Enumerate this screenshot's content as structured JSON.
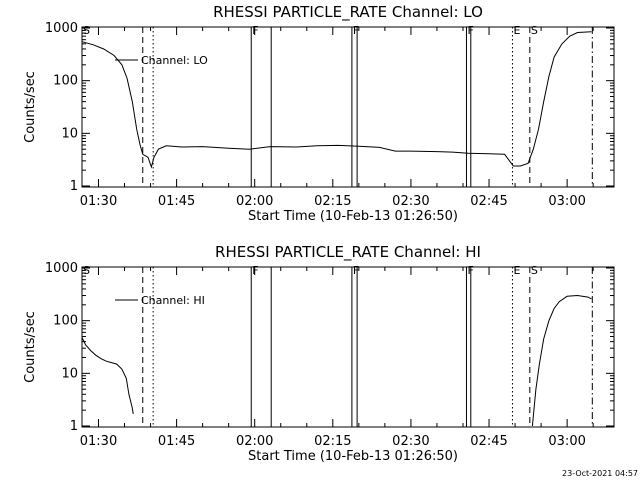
{
  "footer": {
    "timestamp": "23-Oct-2021 04:57"
  },
  "chart_data": [
    {
      "type": "line",
      "title": "RHESSI PARTICLE_RATE Channel: LO",
      "xlabel": "Start Time (10-Feb-13 01:26:50)",
      "ylabel": "Counts/sec",
      "y_scale": "log",
      "ylim": [
        1,
        1000
      ],
      "xlim": [
        "01:26:50",
        "03:09:00"
      ],
      "x_ticks": [
        "01:30",
        "01:45",
        "02:00",
        "02:15",
        "02:30",
        "02:45",
        "03:00"
      ],
      "y_ticks": [
        "1",
        "10",
        "100",
        "1000"
      ],
      "legend": {
        "position": "top-left",
        "entries": [
          "Channel: LO"
        ]
      },
      "markers": [
        {
          "label": "S",
          "time": "01:26:50",
          "style": "dashdot"
        },
        {
          "label": "",
          "time": "01:38:30",
          "style": "dashed"
        },
        {
          "label": "",
          "time": "01:40:30",
          "style": "dotted"
        },
        {
          "label": "F",
          "time": "01:59:20",
          "style": "solid"
        },
        {
          "label": "",
          "time": "02:03:10",
          "style": "solid"
        },
        {
          "label": "F",
          "time": "02:18:40",
          "style": "solid"
        },
        {
          "label": "",
          "time": "02:19:40",
          "style": "solid"
        },
        {
          "label": "F",
          "time": "02:40:40",
          "style": "solid"
        },
        {
          "label": "",
          "time": "02:41:30",
          "style": "solid"
        },
        {
          "label": "E",
          "time": "02:49:30",
          "style": "dotted"
        },
        {
          "label": "S",
          "time": "02:52:50",
          "style": "dashed"
        },
        {
          "label": "",
          "time": "03:04:50",
          "style": "dashdot"
        }
      ],
      "series": [
        {
          "name": "Channel: LO",
          "points": [
            [
              "01:26:50",
              550
            ],
            [
              "01:29:00",
              480
            ],
            [
              "01:31:00",
              400
            ],
            [
              "01:33:00",
              300
            ],
            [
              "01:34:30",
              200
            ],
            [
              "01:35:30",
              110
            ],
            [
              "01:36:30",
              40
            ],
            [
              "01:37:20",
              12
            ],
            [
              "01:38:00",
              6
            ],
            [
              "01:38:30",
              4
            ],
            [
              "01:39:30",
              3.5
            ],
            [
              "01:40:10",
              2.3
            ],
            [
              "01:40:40",
              3.5
            ],
            [
              "01:41:30",
              5
            ],
            [
              "01:43:00",
              5.8
            ],
            [
              "01:46:00",
              5.5
            ],
            [
              "01:50:00",
              5.6
            ],
            [
              "01:55:00",
              5.2
            ],
            [
              "01:59:00",
              5.0
            ],
            [
              "02:03:00",
              5.6
            ],
            [
              "02:08:00",
              5.5
            ],
            [
              "02:12:00",
              5.8
            ],
            [
              "02:16:00",
              5.9
            ],
            [
              "02:20:00",
              5.7
            ],
            [
              "02:24:00",
              5.4
            ],
            [
              "02:27:00",
              4.6
            ],
            [
              "02:30:00",
              4.6
            ],
            [
              "02:35:00",
              4.5
            ],
            [
              "02:38:00",
              4.4
            ],
            [
              "02:41:00",
              4.2
            ],
            [
              "02:45:00",
              4.1
            ],
            [
              "02:48:00",
              4.0
            ],
            [
              "02:49:40",
              2.4
            ],
            [
              "02:51:00",
              2.4
            ],
            [
              "02:52:30",
              2.7
            ],
            [
              "02:53:30",
              5
            ],
            [
              "02:54:30",
              12
            ],
            [
              "02:55:30",
              40
            ],
            [
              "02:56:30",
              120
            ],
            [
              "02:57:30",
              280
            ],
            [
              "02:59:00",
              500
            ],
            [
              "03:00:30",
              700
            ],
            [
              "03:02:00",
              820
            ],
            [
              "03:04:40",
              850
            ]
          ]
        }
      ]
    },
    {
      "type": "line",
      "title": "RHESSI PARTICLE_RATE Channel: HI",
      "xlabel": "Start Time (10-Feb-13 01:26:50)",
      "ylabel": "Counts/sec",
      "y_scale": "log",
      "ylim": [
        1,
        1000
      ],
      "xlim": [
        "01:26:50",
        "03:09:00"
      ],
      "x_ticks": [
        "01:30",
        "01:45",
        "02:00",
        "02:15",
        "02:30",
        "02:45",
        "03:00"
      ],
      "y_ticks": [
        "1",
        "10",
        "100",
        "1000"
      ],
      "legend": {
        "position": "top-left",
        "entries": [
          "Channel: HI"
        ]
      },
      "markers": [
        {
          "label": "S",
          "time": "01:26:50",
          "style": "dashdot"
        },
        {
          "label": "",
          "time": "01:38:30",
          "style": "dashed"
        },
        {
          "label": "",
          "time": "01:40:30",
          "style": "dotted"
        },
        {
          "label": "F",
          "time": "01:59:20",
          "style": "solid"
        },
        {
          "label": "",
          "time": "02:03:10",
          "style": "solid"
        },
        {
          "label": "F",
          "time": "02:18:40",
          "style": "solid"
        },
        {
          "label": "",
          "time": "02:19:40",
          "style": "solid"
        },
        {
          "label": "F",
          "time": "02:40:40",
          "style": "solid"
        },
        {
          "label": "",
          "time": "02:41:30",
          "style": "solid"
        },
        {
          "label": "E",
          "time": "02:49:30",
          "style": "dotted"
        },
        {
          "label": "S",
          "time": "02:52:50",
          "style": "dashed"
        },
        {
          "label": "",
          "time": "03:04:50",
          "style": "dashdot"
        }
      ],
      "series": [
        {
          "name": "Channel: HI",
          "points": [
            [
              "01:26:50",
              48
            ],
            [
              "01:27:30",
              35
            ],
            [
              "01:28:30",
              27
            ],
            [
              "01:29:30",
              22
            ],
            [
              "01:30:30",
              19
            ],
            [
              "01:31:30",
              17
            ],
            [
              "01:32:30",
              16
            ],
            [
              "01:33:30",
              15
            ],
            [
              "01:34:30",
              12
            ],
            [
              "01:35:20",
              8
            ],
            [
              "01:35:50",
              4
            ],
            [
              "01:36:30",
              2.2
            ],
            [
              "01:36:40",
              1.7
            ]
          ]
        },
        {
          "name": "Channel: HI",
          "points": [
            [
              "02:53:20",
              1.0
            ],
            [
              "02:54:00",
              5
            ],
            [
              "02:54:40",
              15
            ],
            [
              "02:55:30",
              45
            ],
            [
              "02:56:30",
              100
            ],
            [
              "02:57:30",
              170
            ],
            [
              "02:58:30",
              230
            ],
            [
              "03:00:00",
              290
            ],
            [
              "03:02:00",
              300
            ],
            [
              "03:04:00",
              280
            ],
            [
              "03:04:40",
              260
            ]
          ]
        }
      ]
    }
  ]
}
